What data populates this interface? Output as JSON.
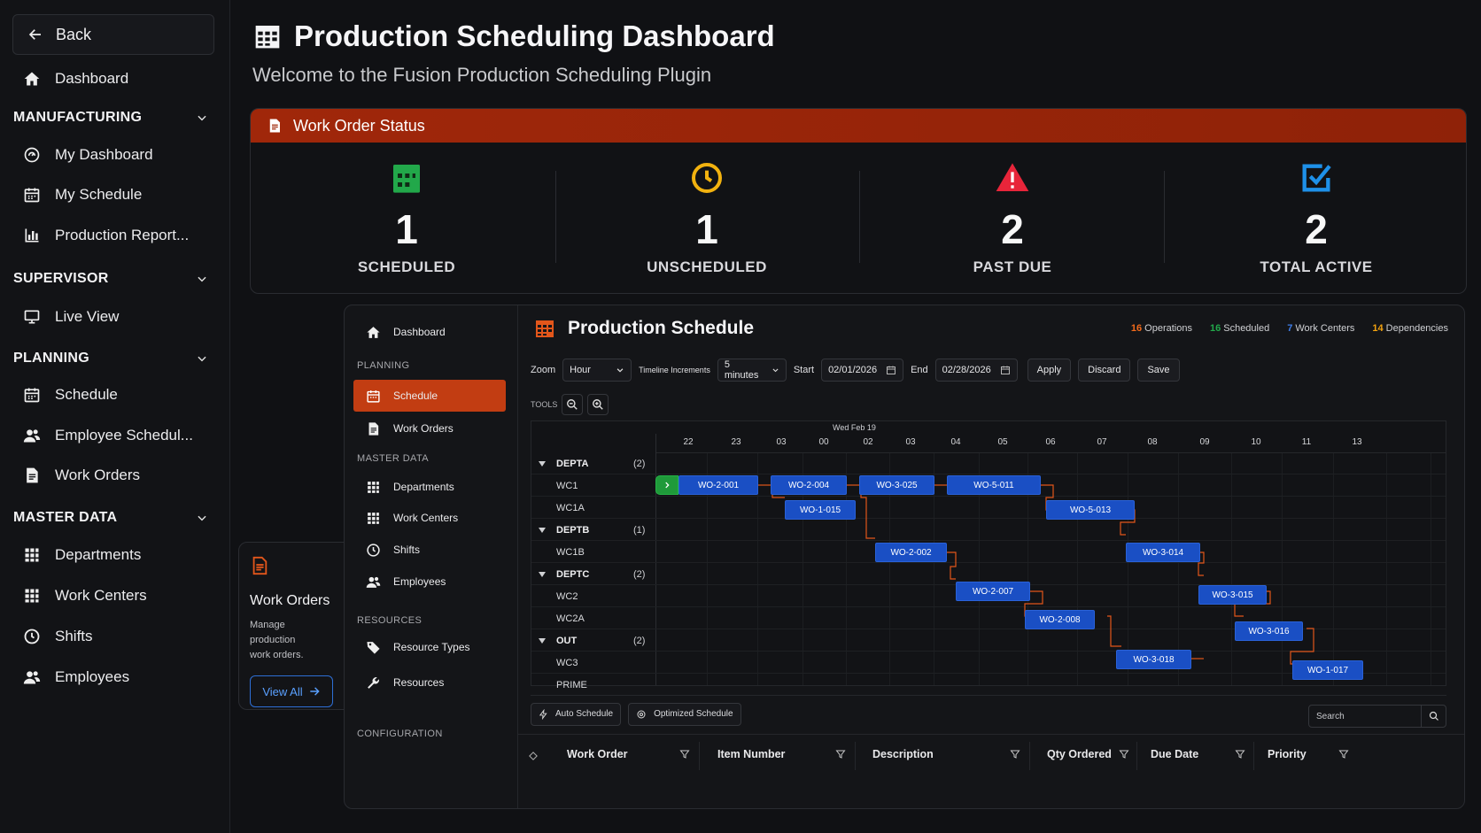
{
  "sidebar": {
    "back_label": "Back",
    "dashboard_label": "Dashboard",
    "sections": {
      "manufacturing": "MANUFACTURING",
      "supervisor": "SUPERVISOR",
      "planning": "PLANNING",
      "master_data": "MASTER DATA"
    },
    "items": {
      "my_dashboard": "My Dashboard",
      "my_schedule": "My Schedule",
      "production_report": "Production Report...",
      "live_view": "Live View",
      "schedule": "Schedule",
      "employee_schedule": "Employee Schedul...",
      "work_orders": "Work Orders",
      "departments": "Departments",
      "work_centers": "Work Centers",
      "shifts": "Shifts",
      "employees": "Employees"
    }
  },
  "header": {
    "title": "Production Scheduling Dashboard",
    "subtitle": "Welcome to the Fusion Production Scheduling Plugin"
  },
  "status": {
    "title": "Work Order Status",
    "accent": "#a0270a",
    "stats": [
      {
        "value": "1",
        "label": "SCHEDULED",
        "icon": "calendar-icon",
        "color": "#22a84a"
      },
      {
        "value": "1",
        "label": "UNSCHEDULED",
        "icon": "clock-icon",
        "color": "#f2b20f"
      },
      {
        "value": "2",
        "label": "PAST DUE",
        "icon": "warning-icon",
        "color": "#e8253a"
      },
      {
        "value": "2",
        "label": "TOTAL ACTIVE",
        "icon": "checkbox-icon",
        "color": "#1e90e8"
      }
    ]
  },
  "wo_card": {
    "title": "Work Orders",
    "desc_line1": "Manage production",
    "desc_line2": "work orders.",
    "button": "View All"
  },
  "inner_nav": {
    "dashboard": "Dashboard",
    "planning": "PLANNING",
    "schedule": "Schedule",
    "work_orders": "Work Orders",
    "master_data": "MASTER DATA",
    "departments": "Departments",
    "work_centers": "Work Centers",
    "shifts": "Shifts",
    "employees": "Employees",
    "resources_head": "RESOURCES",
    "resource_types": "Resource Types",
    "resources": "Resources",
    "configuration": "CONFIGURATION"
  },
  "schedule": {
    "title": "Production Schedule",
    "stats": [
      {
        "num": "16",
        "label": "Operations",
        "color": "#f26a1b"
      },
      {
        "num": "16",
        "label": "Scheduled",
        "color": "#22a84a"
      },
      {
        "num": "7",
        "label": "Work Centers",
        "color": "#3f7de8"
      },
      {
        "num": "14",
        "label": "Dependencies",
        "color": "#f2a20f"
      }
    ],
    "toolbar": {
      "zoom_label": "Zoom",
      "zoom_value": "Hour",
      "increments_label": "Timeline Increments",
      "increments_value": "5 minutes",
      "start_label": "Start",
      "start_value": "02/01/2026",
      "end_label": "End",
      "end_value": "02/28/2026",
      "apply": "Apply",
      "discard": "Discard",
      "save": "Save"
    },
    "tools_label": "TOOLS",
    "date_label": "Wed Feb 19",
    "hours": [
      "22",
      "23",
      "03",
      "00",
      "02",
      "03",
      "04",
      "05",
      "06",
      "07",
      "08",
      "09",
      "10",
      "11",
      "13"
    ],
    "rows": [
      {
        "label": "DEPTA",
        "count": "(2)",
        "dept": true
      },
      {
        "label": "WC1",
        "count": "",
        "dept": false
      },
      {
        "label": "WC1A",
        "count": "",
        "dept": false
      },
      {
        "label": "DEPTB",
        "count": "(1)",
        "dept": true
      },
      {
        "label": "WC1B",
        "count": "",
        "dept": false
      },
      {
        "label": "DEPTC",
        "count": "(2)",
        "dept": true
      },
      {
        "label": "WC2",
        "count": "",
        "dept": false
      },
      {
        "label": "WC2A",
        "count": "",
        "dept": false
      },
      {
        "label": "OUT",
        "count": "(2)",
        "dept": true
      },
      {
        "label": "WC3",
        "count": "",
        "dept": false
      },
      {
        "label": "PRIME",
        "count": "",
        "dept": false
      }
    ],
    "bars": [
      "WO-2-001",
      "WO-2-004",
      "WO-3-025",
      "WO-5-011",
      "WO-1-015",
      "WO-5-013",
      "WO-2-002",
      "WO-3-014",
      "WO-2-007",
      "WO-3-015",
      "WO-2-008",
      "WO-3-016",
      "WO-3-018",
      "WO-1-017"
    ],
    "auto_schedule": "Auto Schedule",
    "optimized_schedule": "Optimized Schedule",
    "search_placeholder": "Search",
    "columns": [
      "Work Order",
      "Item Number",
      "Description",
      "Qty Ordered",
      "Due Date",
      "Priority"
    ]
  }
}
